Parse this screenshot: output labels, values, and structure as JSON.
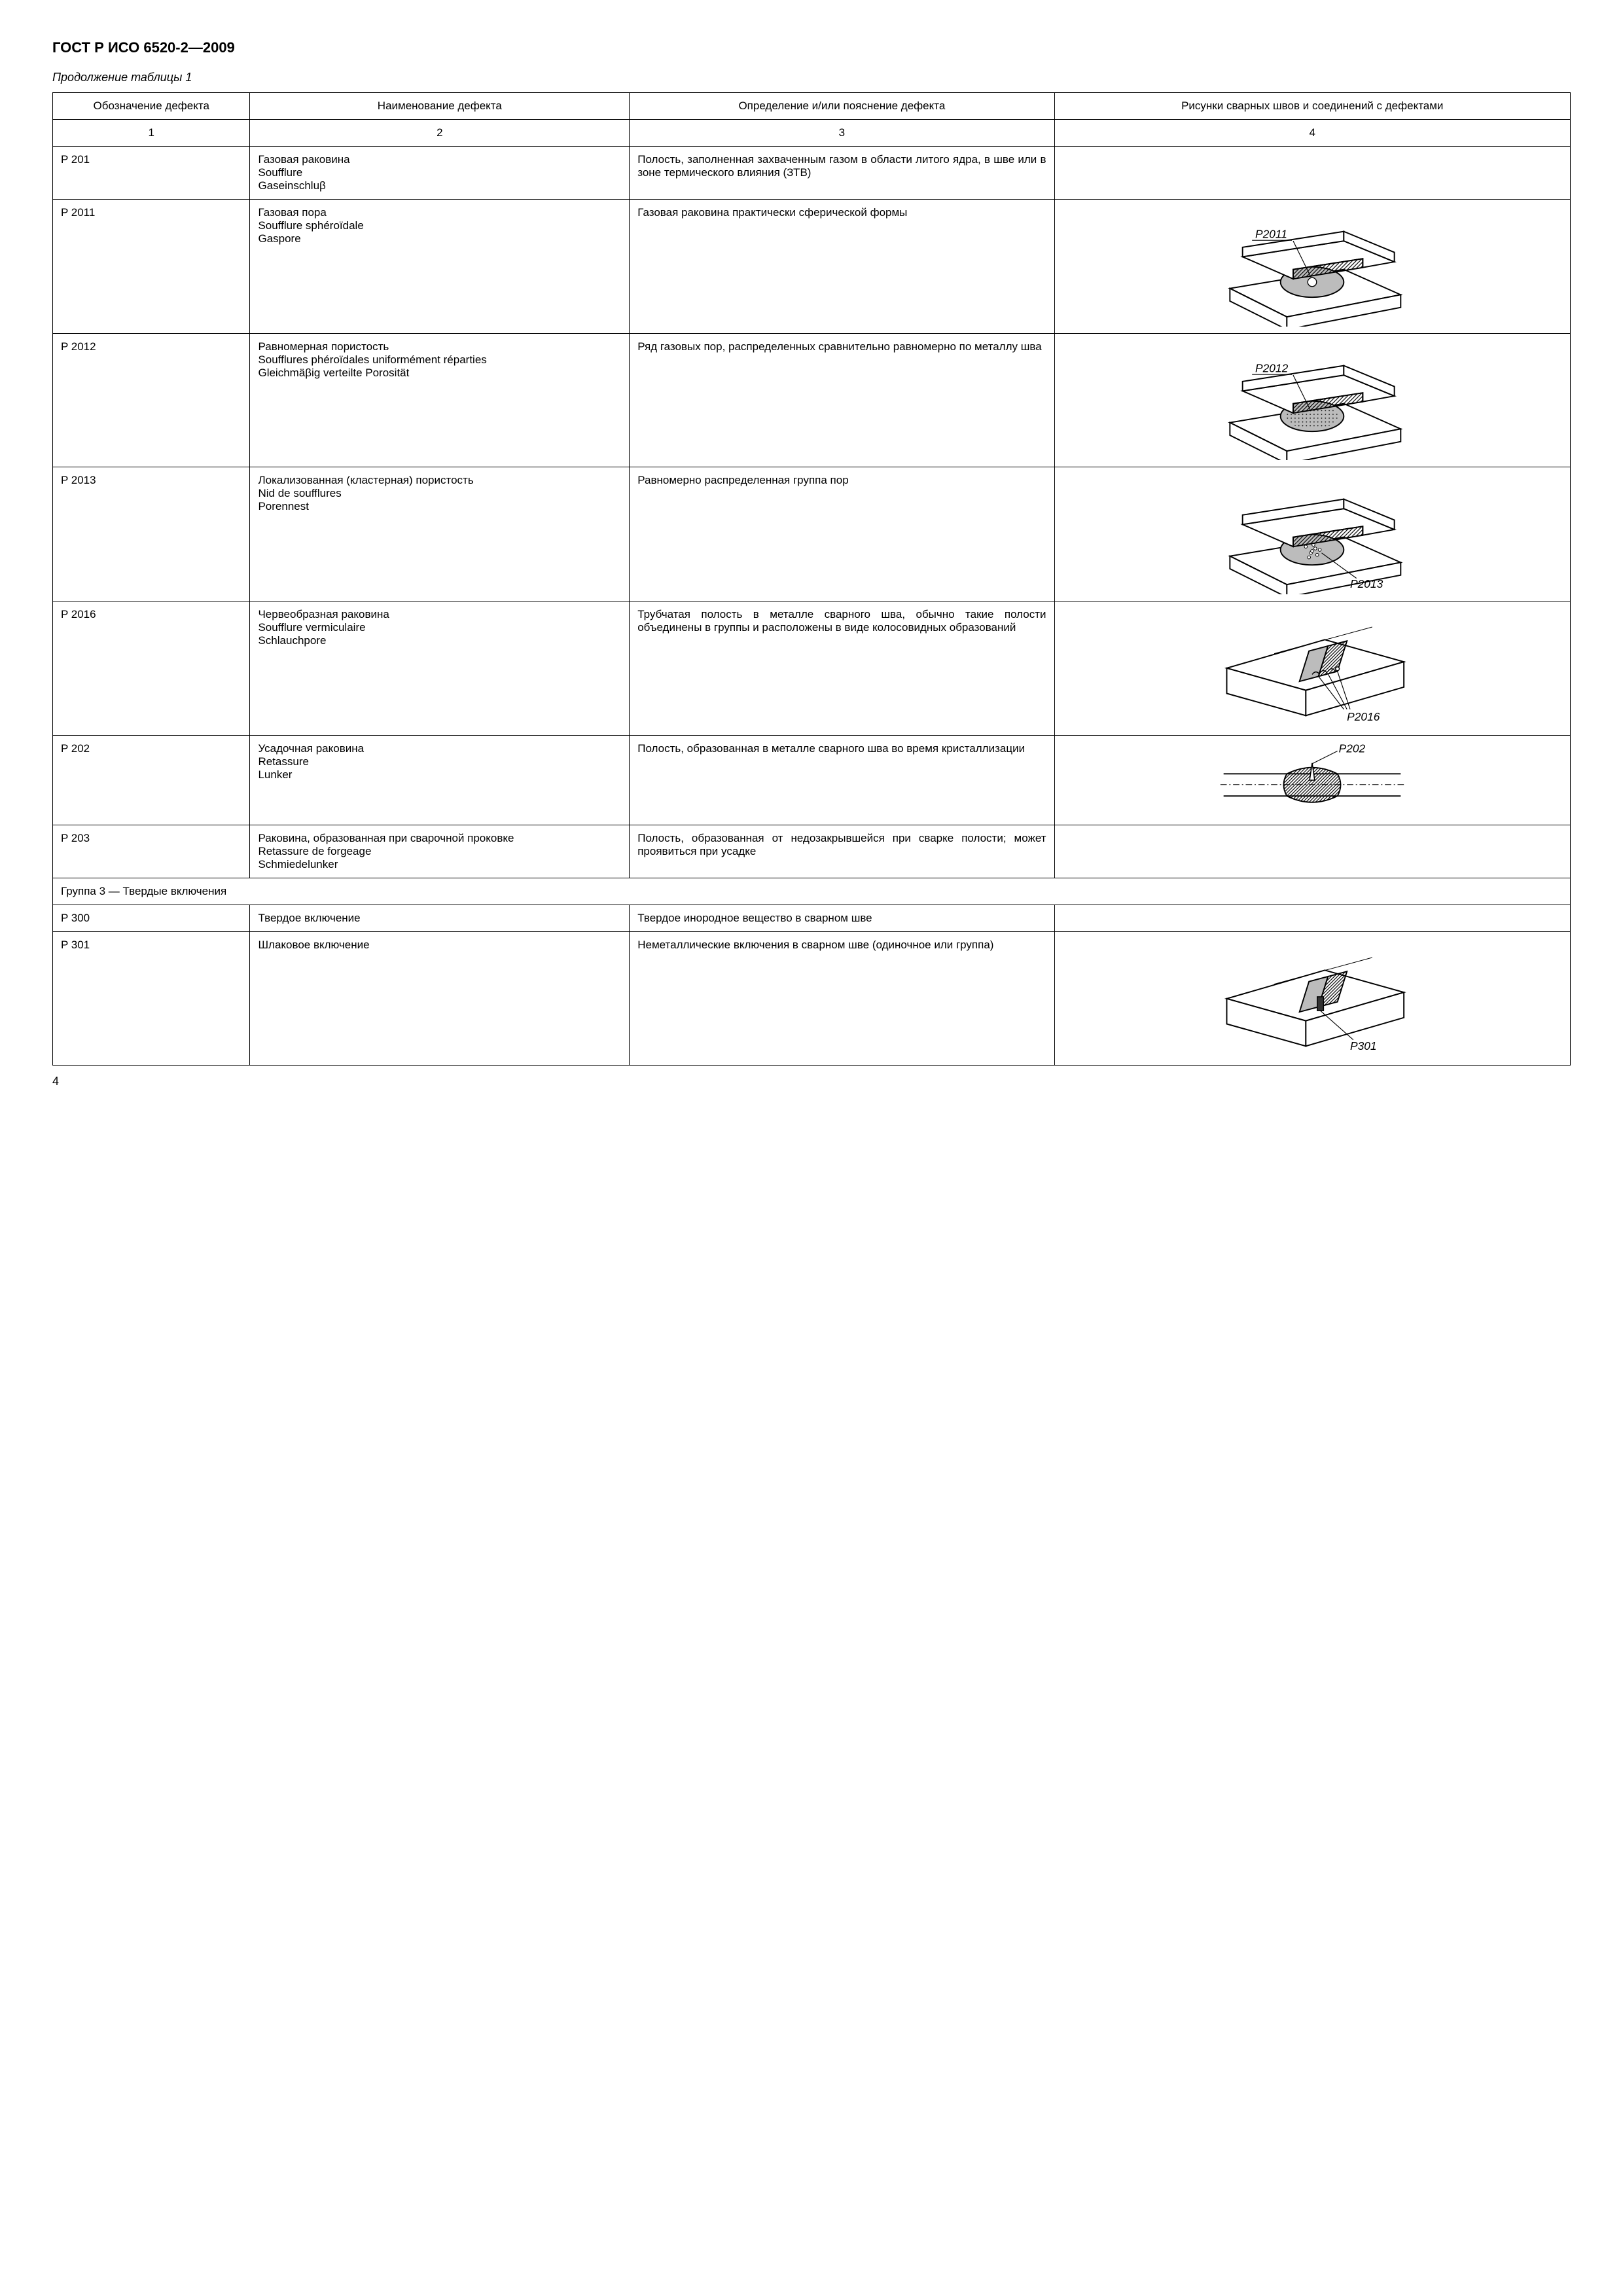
{
  "header": {
    "doc_title": "ГОСТ Р ИСО 6520-2—2009",
    "table_caption": "Продолжение таблицы 1"
  },
  "columns": {
    "c1": "Обозначение дефекта",
    "c2": "Наименование дефекта",
    "c3": "Определение и/или пояснение дефекта",
    "c4": "Рисунки сварных швов и соединений с дефектами",
    "n1": "1",
    "n2": "2",
    "n3": "3",
    "n4": "4"
  },
  "rows": [
    {
      "code": "P 201",
      "name": "Газовая раковина\nSoufflure\nGaseinschluβ",
      "def": "Полость, заполненная захва­ченным газом в области лито­го ядра, в шве или в зоне термического влияния (ЗТВ)",
      "diagram": null
    },
    {
      "code": "P 2011",
      "name": "Газовая пора\nSoufflure sphéroïdale\nGaspore",
      "def": "Газовая раковина практичес­ки сферической формы",
      "diagram": "p2011"
    },
    {
      "code": "P 2012",
      "name": "Равномерная пористость\nSoufflures phéroïdales uniformément réparties\nGleichmäβig verteilte Porosität",
      "def": "Ряд газовых пор, распреде­ленных сравнительно равно­мерно по металлу шва",
      "diagram": "p2012"
    },
    {
      "code": "P 2013",
      "name": "Локализованная (клас­терная) пористость\nNid de soufflures\nPorennest",
      "def": "Равномерно распределенная группа пор",
      "diagram": "p2013"
    },
    {
      "code": "P 2016",
      "name": "Червеобразная раковина\nSoufflure vermiculaire\nSchlauchpore",
      "def": "Трубчатая полость в металле сварного шва, обычно такие полости объединены в груп­пы и расположены в виде ко­лосовидных образований",
      "diagram": "p2016"
    },
    {
      "code": "P 202",
      "name": "Усадочная раковина\nRetassure\nLunker",
      "def": "Полость, образованная в ме­талле сварного шва во время кристаллизации",
      "diagram": "p202"
    },
    {
      "code": "P 203",
      "name": "Раковина, образованная при сварочной проковке\nRetassure de forgeage\nSchmiedelunker",
      "def": "Полость, образованная от не­дозакрывшейся при сварке полости; может проявиться при усадке",
      "diagram": null
    }
  ],
  "group_row": "Группа 3 — Твердые включения",
  "rows2": [
    {
      "code": "P 300",
      "name": "Твердое включение",
      "def": "Твердое инородное вещест­во в сварном шве",
      "diagram": null
    },
    {
      "code": "P 301",
      "name": "Шлаковое включение",
      "def": "Неметаллические включения в сварном шве (одиночное или группа)",
      "diagram": "p301"
    }
  ],
  "page_number": "4",
  "diagrams": {
    "p2011": {
      "label": "P2011",
      "type": "isometric-nugget",
      "defect": "single-pore",
      "colors": {
        "stroke": "#000",
        "fill": "#fff",
        "nugget": "#bcbcbc",
        "hatch": "#000"
      }
    },
    "p2012": {
      "label": "P2012",
      "type": "isometric-nugget",
      "defect": "uniform-pores",
      "colors": {
        "stroke": "#000",
        "fill": "#fff",
        "nugget": "#bcbcbc",
        "hatch": "#000"
      }
    },
    "p2013": {
      "label": "P2013",
      "type": "isometric-nugget",
      "defect": "cluster-pores",
      "colors": {
        "stroke": "#000",
        "fill": "#fff",
        "nugget": "#bcbcbc",
        "hatch": "#000"
      }
    },
    "p2016": {
      "label": "P2016",
      "type": "isometric-block",
      "defect": "worm-holes",
      "colors": {
        "stroke": "#000",
        "fill": "#fff",
        "weld": "#bcbcbc",
        "hatch": "#000"
      }
    },
    "p202": {
      "label": "P202",
      "type": "cross-section",
      "defect": "shrinkage",
      "colors": {
        "stroke": "#000",
        "fill": "#fff",
        "hatch": "#000"
      }
    },
    "p301": {
      "label": "P301",
      "type": "isometric-block",
      "defect": "slag",
      "colors": {
        "stroke": "#000",
        "fill": "#fff",
        "weld": "#bcbcbc",
        "hatch": "#000"
      }
    }
  }
}
